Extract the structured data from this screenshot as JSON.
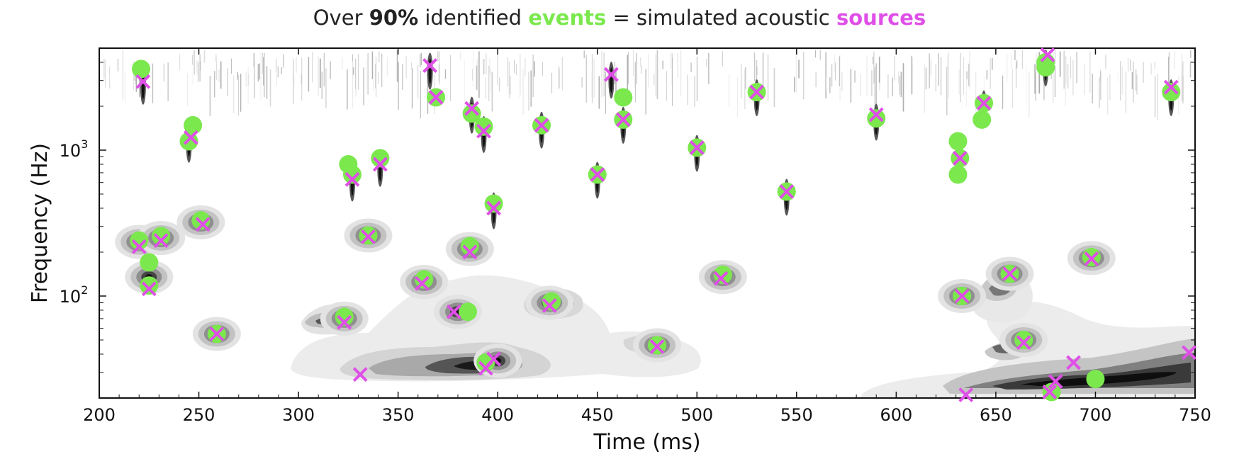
{
  "title": {
    "prefix": "Over ",
    "bold": "90%",
    "mid1": " identified ",
    "events_word": "events",
    "mid2": " = simulated acoustic ",
    "sources_word": "sources"
  },
  "chart_data": {
    "type": "scatter",
    "xlabel": "Time (ms)",
    "ylabel": "Frequency (Hz)",
    "xlim": [
      200,
      750
    ],
    "ylim": [
      20,
      5000
    ],
    "yscale": "log",
    "x_ticks": [
      200,
      250,
      300,
      350,
      400,
      450,
      500,
      550,
      600,
      650,
      700,
      750
    ],
    "y_ticks": [
      {
        "value": 100,
        "base": "10",
        "exp": "2"
      },
      {
        "value": 1000,
        "base": "10",
        "exp": "3"
      }
    ],
    "colors": {
      "events": "#7be84e",
      "sources": "#df4fe7",
      "contour": "#000000"
    },
    "background": "grayscale time-frequency contour map (dark = high energy)",
    "series": [
      {
        "name": "events",
        "marker": "circle",
        "points": [
          [
            221,
            3600
          ],
          [
            245,
            1150
          ],
          [
            247,
            1480
          ],
          [
            220,
            240
          ],
          [
            231,
            258
          ],
          [
            225,
            170
          ],
          [
            225,
            118
          ],
          [
            251,
            330
          ],
          [
            259,
            55
          ],
          [
            325,
            800
          ],
          [
            327,
            680
          ],
          [
            341,
            880
          ],
          [
            335,
            260
          ],
          [
            323,
            72
          ],
          [
            363,
            130
          ],
          [
            386,
            220
          ],
          [
            385,
            78
          ],
          [
            394,
            35
          ],
          [
            369,
            2300
          ],
          [
            387,
            1780
          ],
          [
            393,
            1450
          ],
          [
            398,
            430
          ],
          [
            422,
            1480
          ],
          [
            427,
            92
          ],
          [
            450,
            680
          ],
          [
            463,
            2300
          ],
          [
            463,
            1620
          ],
          [
            480,
            46
          ],
          [
            500,
            1040
          ],
          [
            513,
            140
          ],
          [
            530,
            2500
          ],
          [
            545,
            520
          ],
          [
            590,
            1650
          ],
          [
            631,
            1150
          ],
          [
            632,
            880
          ],
          [
            631,
            680
          ],
          [
            633,
            100
          ],
          [
            644,
            2100
          ],
          [
            643,
            1620
          ],
          [
            657,
            142
          ],
          [
            664,
            50
          ],
          [
            675,
            4000
          ],
          [
            675,
            3700
          ],
          [
            698,
            185
          ],
          [
            678,
            22
          ],
          [
            700,
            27
          ],
          [
            738,
            2500
          ]
        ]
      },
      {
        "name": "sources",
        "marker": "x",
        "points": [
          [
            222,
            2950
          ],
          [
            246,
            1220
          ],
          [
            220,
            218
          ],
          [
            231,
            240
          ],
          [
            225,
            112
          ],
          [
            252,
            310
          ],
          [
            259,
            55
          ],
          [
            327,
            630
          ],
          [
            341,
            800
          ],
          [
            335,
            255
          ],
          [
            323,
            66
          ],
          [
            331,
            29
          ],
          [
            362,
            122
          ],
          [
            366,
            3800
          ],
          [
            369,
            2300
          ],
          [
            387,
            1930
          ],
          [
            393,
            1350
          ],
          [
            378,
            78
          ],
          [
            386,
            200
          ],
          [
            398,
            400
          ],
          [
            398,
            37
          ],
          [
            394,
            32
          ],
          [
            422,
            1480
          ],
          [
            426,
            86
          ],
          [
            450,
            680
          ],
          [
            457,
            3300
          ],
          [
            463,
            1620
          ],
          [
            480,
            45
          ],
          [
            500,
            1040
          ],
          [
            512,
            132
          ],
          [
            530,
            2500
          ],
          [
            545,
            520
          ],
          [
            590,
            1750
          ],
          [
            632,
            880
          ],
          [
            633,
            100
          ],
          [
            635,
            21
          ],
          [
            644,
            2100
          ],
          [
            657,
            142
          ],
          [
            664,
            48
          ],
          [
            676,
            4500
          ],
          [
            677,
            22
          ],
          [
            680,
            26
          ],
          [
            689,
            35
          ],
          [
            698,
            180
          ],
          [
            738,
            2700
          ],
          [
            747,
            41
          ]
        ]
      }
    ]
  }
}
